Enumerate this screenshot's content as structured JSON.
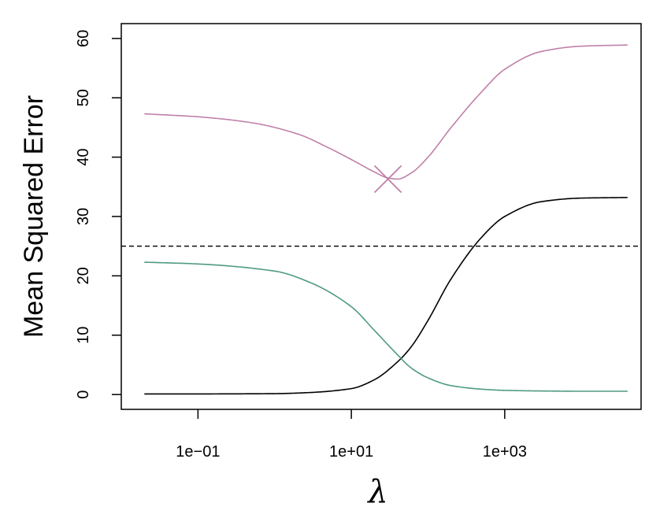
{
  "chart_data": {
    "type": "line",
    "title": "",
    "xlabel": "λ",
    "ylabel": "Mean Squared Error",
    "x_scale": "log10",
    "xlim": [
      0.01,
      60000
    ],
    "ylim": [
      -2.5,
      62.5
    ],
    "x_ticks": [
      {
        "value": 0.1,
        "label": "1e−01"
      },
      {
        "value": 10,
        "label": "1e+01"
      },
      {
        "value": 1000,
        "label": "1e+03"
      }
    ],
    "y_ticks": [
      {
        "value": 0,
        "label": "0"
      },
      {
        "value": 10,
        "label": "10"
      },
      {
        "value": 20,
        "label": "20"
      },
      {
        "value": 30,
        "label": "30"
      },
      {
        "value": 40,
        "label": "40"
      },
      {
        "value": 50,
        "label": "50"
      },
      {
        "value": 60,
        "label": "60"
      }
    ],
    "grid": false,
    "legend": "none",
    "series": [
      {
        "color": "#c080a8",
        "x": [
          0.02,
          0.1,
          0.5,
          2,
          5,
          10,
          20,
          30,
          40,
          60,
          100,
          200,
          500,
          1000,
          3000,
          10000,
          40000
        ],
        "y": [
          47.3,
          46.8,
          45.8,
          43.9,
          41.6,
          39.6,
          37.5,
          36.5,
          36.3,
          37.3,
          40.0,
          45.0,
          51.0,
          54.8,
          57.8,
          58.7,
          58.9
        ]
      },
      {
        "color": "#000000",
        "x": [
          0.02,
          0.1,
          1,
          3,
          10,
          20,
          40,
          60,
          100,
          200,
          500,
          1000,
          3000,
          10000,
          40000
        ],
        "y": [
          0.1,
          0.1,
          0.15,
          0.35,
          1.0,
          2.5,
          5.5,
          8.0,
          12.5,
          19.5,
          26.5,
          30.0,
          32.5,
          33.1,
          33.2
        ]
      },
      {
        "color": "#4f9a80",
        "x": [
          0.02,
          0.1,
          1,
          3,
          10,
          20,
          40,
          60,
          100,
          200,
          500,
          1000,
          3000,
          10000,
          40000
        ],
        "y": [
          22.3,
          22.0,
          20.8,
          18.8,
          14.8,
          10.8,
          6.7,
          4.5,
          2.8,
          1.5,
          0.9,
          0.7,
          0.6,
          0.55,
          0.55
        ]
      }
    ],
    "reference_line": {
      "y": 25,
      "style": "dashed",
      "color": "#000000"
    },
    "marker": {
      "x": 30,
      "y": 36.3,
      "shape": "x",
      "color": "#c080a8"
    }
  }
}
